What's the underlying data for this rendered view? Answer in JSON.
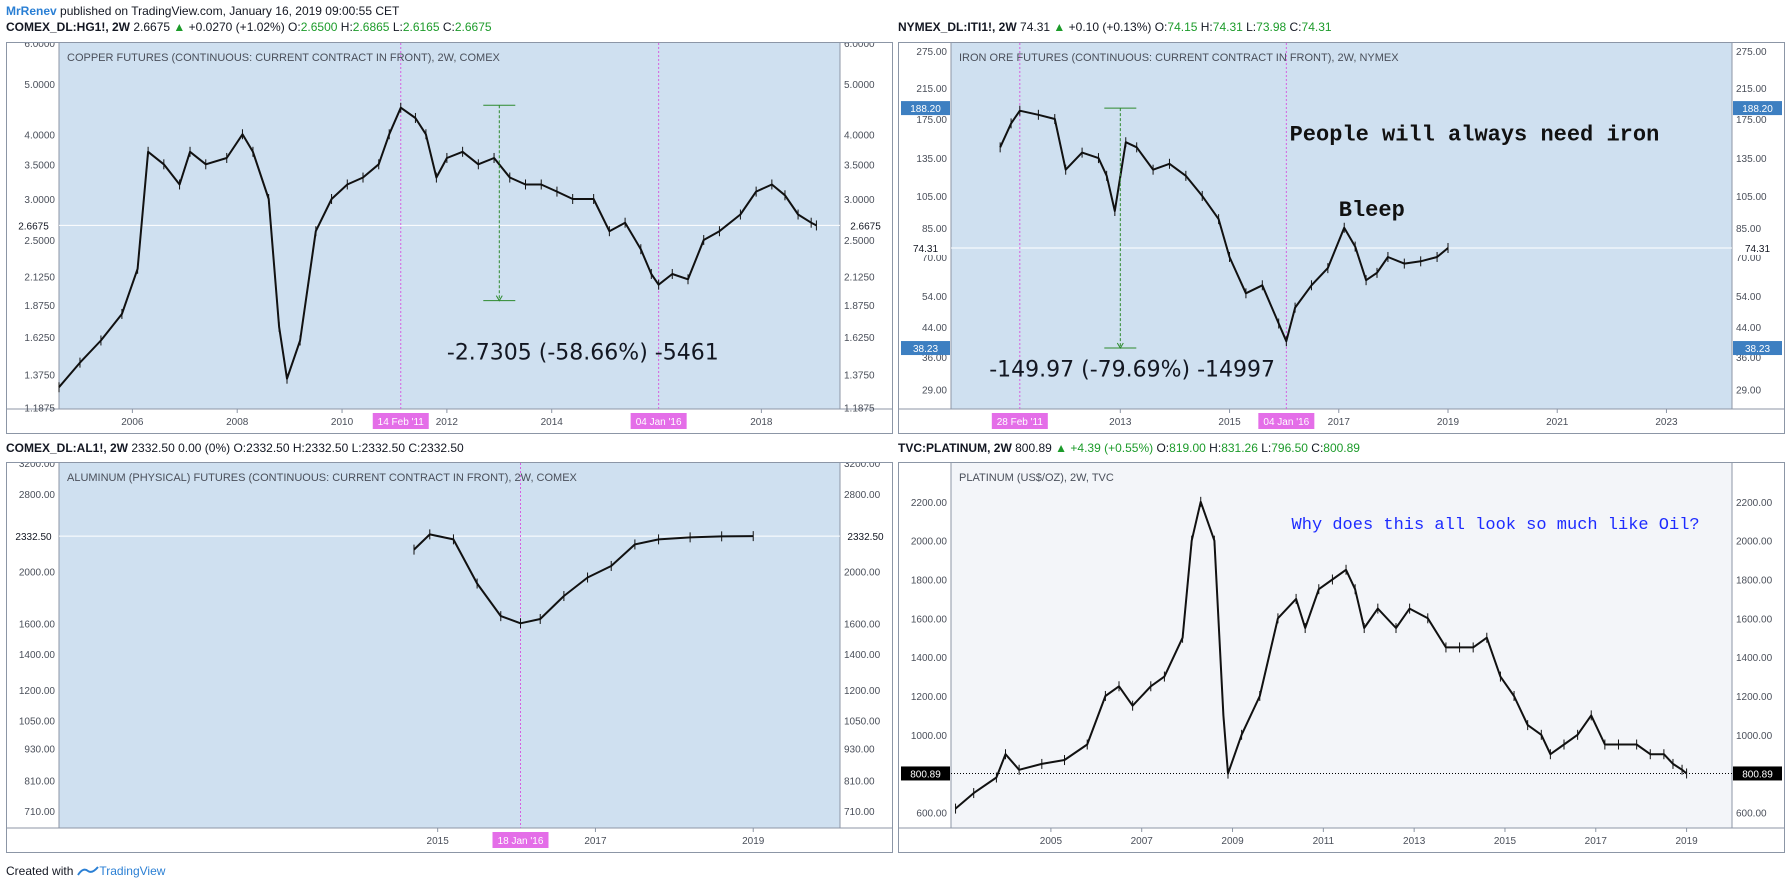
{
  "publish": {
    "author": "MrRenev",
    "text": " published on TradingView.com, January 16, 2019 09:00:55 CET"
  },
  "footer": {
    "created": "Created with",
    "brand": "TradingView"
  },
  "chart_data": [
    {
      "type": "line",
      "header": {
        "symbol": "COMEX_DL:HG1!, 2W",
        "last": "2.6675",
        "arrow": "▲",
        "change": "+0.0270 (+1.02%)",
        "o": "2.6500",
        "h": "2.6865",
        "l": "2.6165",
        "c": "2.6675"
      },
      "title": "COPPER FUTURES (CONTINUOUS: CURRENT CONTRACT IN FRONT), 2W, COMEX",
      "bg": "#cfe0f0",
      "scale": "log",
      "ylim": [
        1.18,
        6.0
      ],
      "xlim": [
        2004.6,
        2019.5
      ],
      "yticks": [
        "6.0000",
        "5.0000",
        "4.0000",
        "3.5000",
        "3.0000",
        "2.5000",
        "2.1250",
        "1.8750",
        "1.6250",
        "1.3750",
        "1.1875"
      ],
      "ytick_values": [
        6.0,
        5.0,
        4.0,
        3.5,
        3.0,
        2.5,
        2.125,
        1.875,
        1.625,
        1.375,
        1.1875
      ],
      "xticks": [
        "2006",
        "2008",
        "2010",
        "2012",
        "2014",
        "2018"
      ],
      "xtick_values": [
        2006,
        2008,
        2010,
        2012,
        2014,
        2018
      ],
      "last_label": "2.6675",
      "last_value": 2.6675,
      "vlines": [
        {
          "x": 2011.12,
          "label": "14 Feb '11"
        },
        {
          "x": 2016.04,
          "label": "04 Jan '16"
        }
      ],
      "measure": {
        "x": 2013.0,
        "y1": 4.55,
        "y2": 1.91,
        "text": "-2.7305 (-58.66%) -5461",
        "text_x": 2012.0,
        "text_y": 1.47
      },
      "series": [
        {
          "x": [
            2004.6,
            2005.0,
            2005.4,
            2005.8,
            2006.1,
            2006.3,
            2006.6,
            2006.9,
            2007.1,
            2007.4,
            2007.8,
            2008.1,
            2008.3,
            2008.6,
            2008.8,
            2008.95,
            2009.2,
            2009.5,
            2009.8,
            2010.1,
            2010.4,
            2010.7,
            2010.9,
            2011.12,
            2011.4,
            2011.6,
            2011.8,
            2012.0,
            2012.3,
            2012.6,
            2012.9,
            2013.2,
            2013.5,
            2013.8,
            2014.1,
            2014.4,
            2014.8,
            2015.1,
            2015.4,
            2015.7,
            2015.9,
            2016.04,
            2016.3,
            2016.6,
            2016.9,
            2017.2,
            2017.6,
            2017.9,
            2018.2,
            2018.45,
            2018.7,
            2018.95,
            2019.05
          ],
          "y": [
            1.3,
            1.45,
            1.6,
            1.8,
            2.2,
            3.7,
            3.5,
            3.2,
            3.7,
            3.5,
            3.6,
            4.0,
            3.7,
            3.0,
            1.7,
            1.35,
            1.6,
            2.6,
            3.0,
            3.2,
            3.3,
            3.5,
            4.0,
            4.5,
            4.3,
            4.0,
            3.3,
            3.6,
            3.7,
            3.5,
            3.6,
            3.3,
            3.2,
            3.2,
            3.1,
            3.0,
            3.0,
            2.6,
            2.7,
            2.4,
            2.15,
            2.05,
            2.15,
            2.1,
            2.5,
            2.6,
            2.8,
            3.1,
            3.2,
            3.05,
            2.8,
            2.7,
            2.6675
          ]
        }
      ]
    },
    {
      "type": "line",
      "header": {
        "symbol": "NYMEX_DL:ITI1!, 2W",
        "last": "74.31",
        "arrow": "▲",
        "change": "+0.10 (+0.13%)",
        "o": "74.15",
        "h": "74.31",
        "l": "73.98",
        "c": "74.31"
      },
      "title": "IRON ORE FUTURES (CONTINUOUS: CURRENT CONTRACT IN FRONT), 2W, NYMEX",
      "bg": "#cfe0f0",
      "scale": "log",
      "ylim": [
        25.5,
        290
      ],
      "xlim": [
        2009.9,
        2024.2
      ],
      "yticks": [
        "275.00",
        "215.00",
        "175.00",
        "135.00",
        "105.00",
        "85.00",
        "70.00",
        "54.00",
        "44.00",
        "36.00",
        "29.00"
      ],
      "ytick_values": [
        275,
        215,
        175,
        135,
        105,
        85,
        70,
        54,
        44,
        36,
        29
      ],
      "xticks": [
        "2013",
        "2015",
        "2017",
        "2019",
        "2021",
        "2023"
      ],
      "xtick_values": [
        2013,
        2015,
        2017,
        2019,
        2021,
        2023
      ],
      "last_label": "74.31",
      "last_value": 74.31,
      "marks": [
        {
          "value": 188.2,
          "label": "188.20"
        },
        {
          "value": 38.23,
          "label": "38.23"
        }
      ],
      "vlines": [
        {
          "x": 2011.16,
          "label": "28 Feb '11"
        },
        {
          "x": 2016.04,
          "label": "04 Jan '16"
        }
      ],
      "measure": {
        "x": 2013.0,
        "y1": 188.2,
        "y2": 38.23,
        "text": "-149.97 (-79.69%) -14997",
        "text_x": 2010.6,
        "text_y": 31.6
      },
      "annotations": [
        {
          "text": "People will always need iron",
          "x": 2016.1,
          "y": 152
        },
        {
          "text": "Bleep",
          "x": 2017.0,
          "y": 92
        }
      ],
      "series": [
        {
          "x": [
            2010.8,
            2011.0,
            2011.16,
            2011.5,
            2011.8,
            2012.0,
            2012.3,
            2012.6,
            2012.75,
            2012.9,
            2013.1,
            2013.3,
            2013.6,
            2013.9,
            2014.2,
            2014.5,
            2014.8,
            2015.0,
            2015.3,
            2015.6,
            2015.9,
            2016.04,
            2016.2,
            2016.5,
            2016.8,
            2017.1,
            2017.3,
            2017.5,
            2017.7,
            2017.9,
            2018.2,
            2018.5,
            2018.8,
            2019.0
          ],
          "y": [
            145,
            170,
            185,
            180,
            175,
            125,
            140,
            135,
            120,
            95,
            150,
            145,
            125,
            130,
            120,
            105,
            90,
            70,
            55,
            58,
            45,
            40,
            50,
            58,
            65,
            85,
            75,
            60,
            63,
            70,
            67,
            68,
            70,
            74.31
          ]
        }
      ]
    },
    {
      "type": "line",
      "header": {
        "symbol": "COMEX_DL:AL1!, 2W",
        "last": "2332.50",
        "arrow": "",
        "change": "0.00 (0%)",
        "o": "2332.50",
        "h": "2332.50",
        "l": "2332.50",
        "c": "2332.50"
      },
      "title": "ALUMINUM (PHYSICAL) FUTURES (CONTINUOUS: CURRENT CONTRACT IN FRONT), 2W, COMEX",
      "bg": "#cfe0f0",
      "scale": "log",
      "ylim": [
        660,
        3200
      ],
      "xlim": [
        2010.2,
        2020.1
      ],
      "yticks": [
        "3200.00",
        "2800.00",
        "2000.00",
        "1600.00",
        "1400.00",
        "1200.00",
        "1050.00",
        "930.00",
        "810.00",
        "710.00"
      ],
      "ytick_values": [
        3200,
        2800,
        2000,
        1600,
        1400,
        1200,
        1050,
        930,
        810,
        710
      ],
      "xticks": [
        "2015",
        "2017",
        "2019"
      ],
      "xtick_values": [
        2015,
        2017,
        2019
      ],
      "last_label": "2332.50",
      "last_value": 2332.5,
      "vlines": [
        {
          "x": 2016.05,
          "label": "18 Jan '16"
        }
      ],
      "series": [
        {
          "x": [
            2014.7,
            2014.9,
            2015.2,
            2015.5,
            2015.8,
            2016.05,
            2016.3,
            2016.6,
            2016.9,
            2017.2,
            2017.5,
            2017.8,
            2018.2,
            2018.6,
            2019.0
          ],
          "y": [
            2200,
            2350,
            2300,
            1900,
            1650,
            1600,
            1630,
            1800,
            1950,
            2050,
            2250,
            2300,
            2320,
            2330,
            2332.5
          ]
        }
      ]
    },
    {
      "type": "line",
      "header": {
        "symbol": "TVC:PLATINUM, 2W",
        "last": "800.89",
        "arrow": "▲",
        "change": "+4.39 (+0.55%)",
        "o": "819.00",
        "h": "831.26",
        "l": "796.50",
        "c": "800.89"
      },
      "title": "PLATINUM (US$/OZ), 2W, TVC",
      "bg": "#f3f5f9",
      "scale": "linear",
      "ylim": [
        520,
        2400
      ],
      "xlim": [
        2002.8,
        2020.0
      ],
      "yticks": [
        "2200.00",
        "2000.00",
        "1800.00",
        "1600.00",
        "1400.00",
        "1200.00",
        "1000.00",
        "600.00"
      ],
      "ytick_values": [
        2200,
        2000,
        1800,
        1600,
        1400,
        1200,
        1000,
        600
      ],
      "xticks": [
        "2005",
        "2007",
        "2009",
        "2011",
        "2013",
        "2015",
        "2017",
        "2019"
      ],
      "xtick_values": [
        2005,
        2007,
        2009,
        2011,
        2013,
        2015,
        2017,
        2019
      ],
      "last_label": "800.89",
      "last_value": 800.89,
      "annotations": [
        {
          "text": "Why does this all look so much like Oil?",
          "x": 2010.3,
          "y": 2060
        }
      ],
      "series": [
        {
          "x": [
            2002.9,
            2003.3,
            2003.8,
            2004.0,
            2004.3,
            2004.8,
            2005.3,
            2005.8,
            2006.2,
            2006.5,
            2006.8,
            2007.2,
            2007.5,
            2007.9,
            2008.1,
            2008.3,
            2008.6,
            2008.8,
            2008.9,
            2009.2,
            2009.6,
            2010.0,
            2010.4,
            2010.6,
            2010.9,
            2011.2,
            2011.5,
            2011.7,
            2011.9,
            2012.2,
            2012.6,
            2012.9,
            2013.3,
            2013.7,
            2014.0,
            2014.3,
            2014.6,
            2014.9,
            2015.2,
            2015.5,
            2015.8,
            2016.0,
            2016.3,
            2016.6,
            2016.9,
            2017.2,
            2017.5,
            2017.9,
            2018.2,
            2018.5,
            2018.7,
            2018.9,
            2019.0
          ],
          "y": [
            620,
            700,
            780,
            900,
            820,
            850,
            870,
            950,
            1200,
            1250,
            1150,
            1250,
            1300,
            1500,
            2000,
            2200,
            2000,
            1100,
            800,
            1000,
            1200,
            1600,
            1700,
            1550,
            1750,
            1800,
            1850,
            1750,
            1550,
            1650,
            1550,
            1650,
            1600,
            1450,
            1450,
            1450,
            1500,
            1300,
            1200,
            1050,
            1000,
            900,
            950,
            1000,
            1100,
            950,
            950,
            950,
            900,
            900,
            850,
            820,
            800.89
          ]
        }
      ]
    }
  ]
}
